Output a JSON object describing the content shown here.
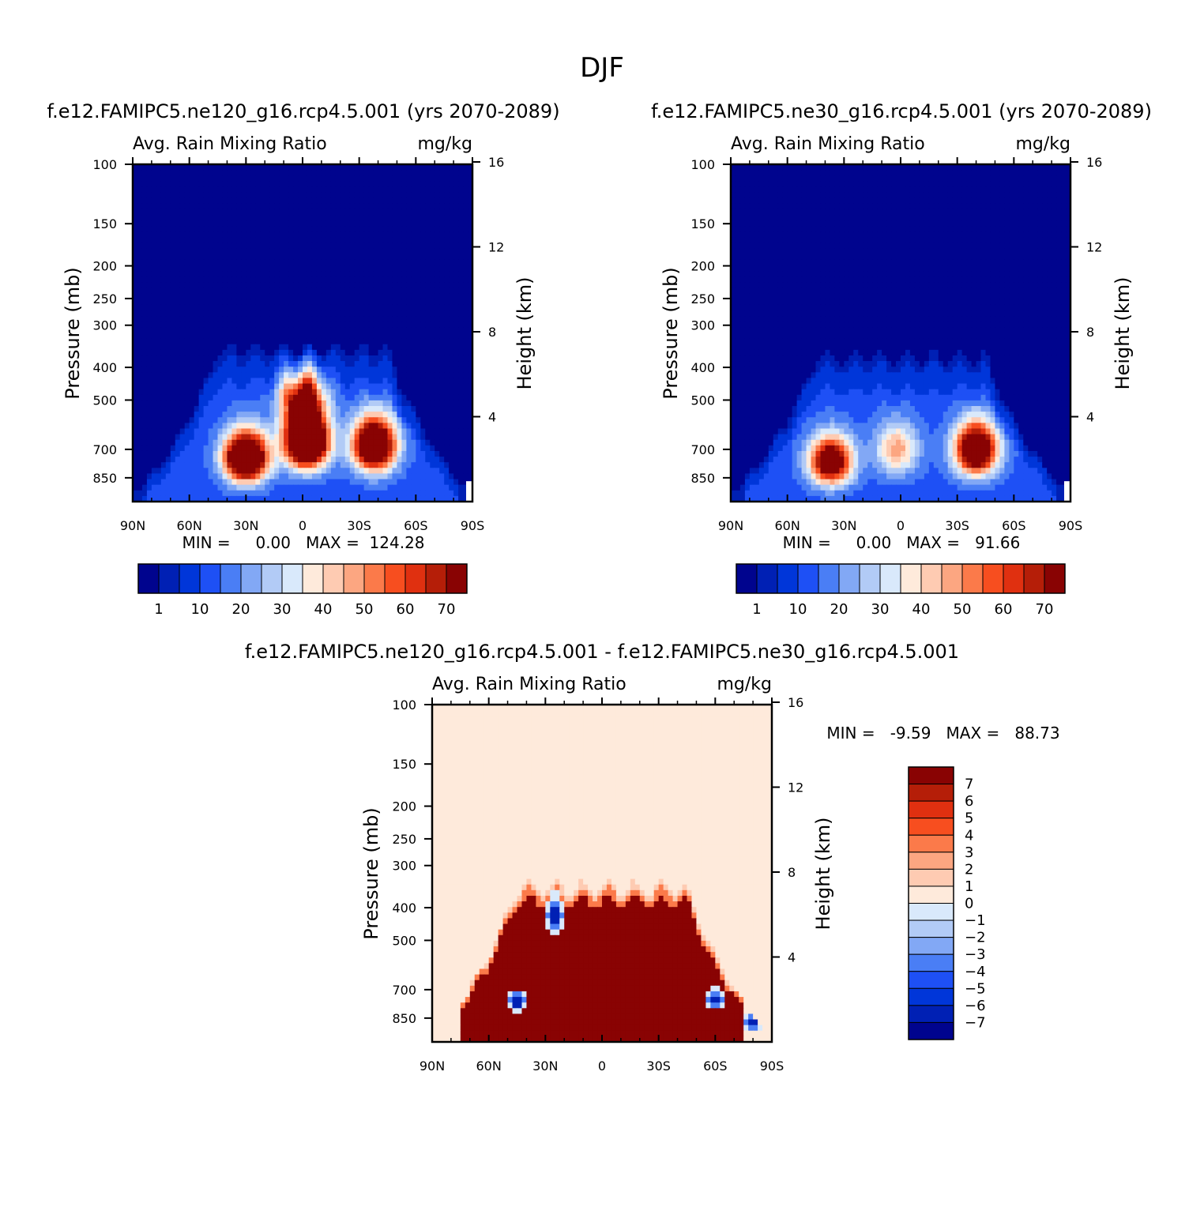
{
  "title": "DJF",
  "chart_data": [
    {
      "type": "heatmap",
      "title": "f.e12.FAMIPC5.ne120_g16.rcp4.5.001 (yrs 2070-2089)",
      "variable": "Avg. Rain Mixing Ratio",
      "units": "mg/kg",
      "xlabel": "",
      "ylabel": "Pressure (mb)",
      "ylabel_right": "Height (km)",
      "x_ticks": [
        "90N",
        "60N",
        "30N",
        "0",
        "30S",
        "60S",
        "90S"
      ],
      "y_ticks": [
        "100",
        "150",
        "200",
        "250",
        "300",
        "400",
        "500",
        "700",
        "850"
      ],
      "y_ticks_right": [
        "16",
        "12",
        "8",
        "4"
      ],
      "ylim": [
        100,
        1000
      ],
      "stats": "MIN =     0.00   MAX =  124.28",
      "colorbar_labels": [
        "1",
        "10",
        "20",
        "30",
        "40",
        "50",
        "60",
        "70"
      ],
      "cloud_top_mb": 355,
      "blobs": [
        {
          "lat": 30,
          "p": 740,
          "value": 110
        },
        {
          "lat": -2,
          "p": 660,
          "value": 124
        },
        {
          "lat": -38,
          "p": 680,
          "value": 100
        },
        {
          "lat": 0,
          "p": 455,
          "value": 75
        }
      ]
    },
    {
      "type": "heatmap",
      "title": "f.e12.FAMIPC5.ne30_g16.rcp4.5.001 (yrs 2070-2089)",
      "variable": "Avg. Rain Mixing Ratio",
      "units": "mg/kg",
      "xlabel": "",
      "ylabel": "Pressure (mb)",
      "ylabel_right": "Height (km)",
      "x_ticks": [
        "90N",
        "60N",
        "30N",
        "0",
        "30S",
        "60S",
        "90S"
      ],
      "y_ticks": [
        "100",
        "150",
        "200",
        "250",
        "300",
        "400",
        "500",
        "700",
        "850"
      ],
      "y_ticks_right": [
        "16",
        "12",
        "8",
        "4"
      ],
      "ylim": [
        100,
        1000
      ],
      "stats": "MIN =     0.00   MAX =   91.66",
      "colorbar_labels": [
        "1",
        "10",
        "20",
        "30",
        "40",
        "50",
        "60",
        "70"
      ],
      "cloud_top_mb": 375,
      "blobs": [
        {
          "lat": 37,
          "p": 760,
          "value": 80
        },
        {
          "lat": -40,
          "p": 700,
          "value": 91
        },
        {
          "lat": 2,
          "p": 700,
          "value": 35
        }
      ]
    },
    {
      "type": "heatmap",
      "title": "f.e12.FAMIPC5.ne120_g16.rcp4.5.001 - f.e12.FAMIPC5.ne30_g16.rcp4.5.001",
      "variable": "Avg. Rain Mixing Ratio",
      "units": "mg/kg",
      "xlabel": "",
      "ylabel": "Pressure (mb)",
      "ylabel_right": "Height (km)",
      "x_ticks": [
        "90N",
        "60N",
        "30N",
        "0",
        "30S",
        "60S",
        "90S"
      ],
      "y_ticks": [
        "100",
        "150",
        "200",
        "250",
        "300",
        "400",
        "500",
        "700",
        "850"
      ],
      "y_ticks_right": [
        "16",
        "12",
        "8",
        "4"
      ],
      "ylim": [
        100,
        1000
      ],
      "stats": "MIN =   -9.59   MAX =   88.73",
      "colorbar_labels": [
        "7",
        "6",
        "5",
        "4",
        "3",
        "2",
        "1",
        "0",
        "-1",
        "-2",
        "-3",
        "-4",
        "-5",
        "-6",
        "-7"
      ],
      "cloud_top_mb": 350,
      "negative_spots": [
        {
          "lat": 45,
          "p": 760
        },
        {
          "lat": 25,
          "p": 420
        },
        {
          "lat": -80,
          "p": 880
        },
        {
          "lat": -60,
          "p": 750
        }
      ]
    }
  ],
  "colors": {
    "seq": [
      "#00048e",
      "#0020b4",
      "#0036d9",
      "#1e50f5",
      "#4a7ef5",
      "#82a8f5",
      "#b2cbf6",
      "#d9e9fb",
      "#feeadb",
      "#fecbb2",
      "#fca681",
      "#fb7a4a",
      "#f74e1f",
      "#e03010",
      "#b51e08",
      "#890303"
    ],
    "diff": [
      "#00048e",
      "#0020b4",
      "#0036d9",
      "#1e50f5",
      "#4a7ef5",
      "#82a8f5",
      "#b2cbf6",
      "#d9e9fb",
      "#feeadb",
      "#fecbb2",
      "#fca681",
      "#fb7a4a",
      "#f74e1f",
      "#e03010",
      "#b51e08",
      "#890303"
    ]
  }
}
